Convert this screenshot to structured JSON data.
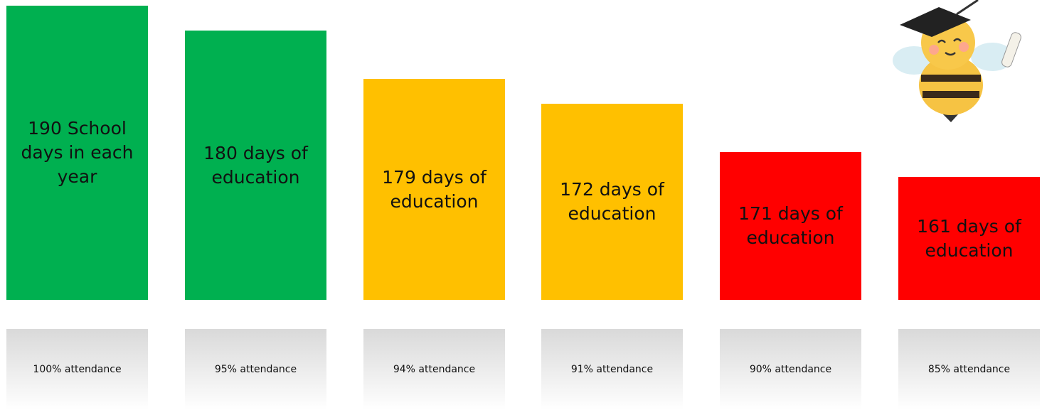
{
  "bars": [
    {
      "label": "190 School days in each year",
      "attendance": "100% attendance",
      "color": "#00b050"
    },
    {
      "label": "180 days of education",
      "attendance": "95% attendance",
      "color": "#00b050"
    },
    {
      "label": "179 days of education",
      "attendance": "94% attendance",
      "color": "#ffc000"
    },
    {
      "label": "172 days of education",
      "attendance": "91% attendance",
      "color": "#ffc000"
    },
    {
      "label": "171 days of education",
      "attendance": "90% attendance",
      "color": "#ff0000"
    },
    {
      "label": "161 days of education",
      "attendance": "85% attendance",
      "color": "#ff0000"
    }
  ]
}
